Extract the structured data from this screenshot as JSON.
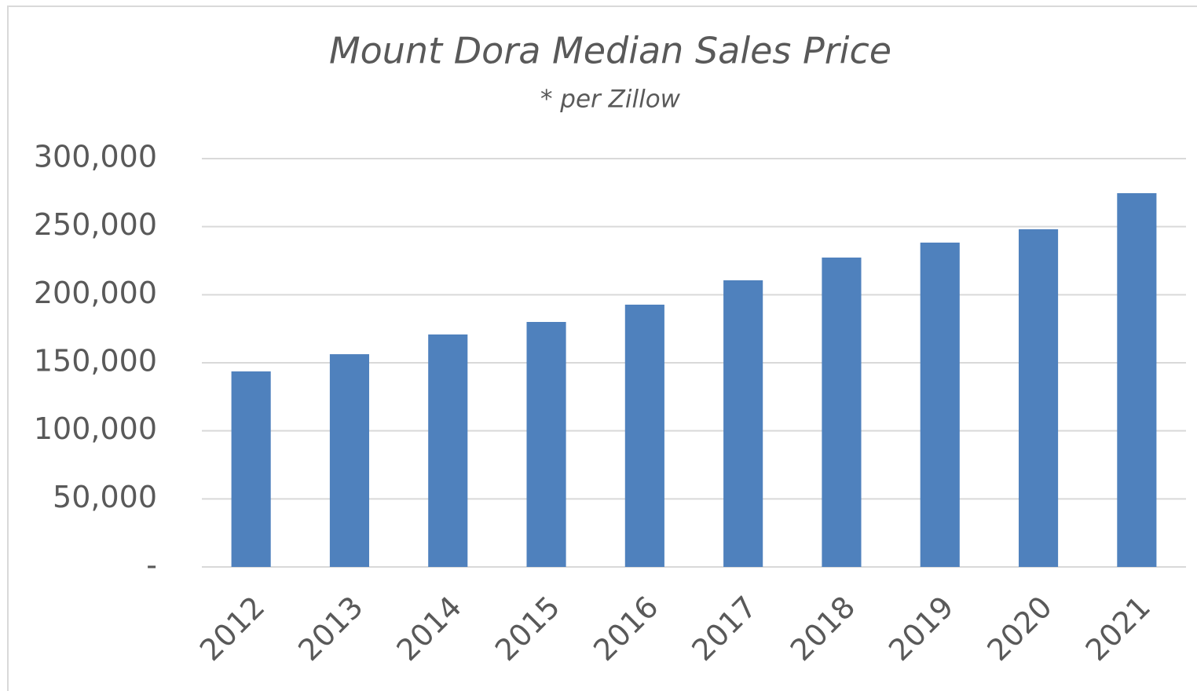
{
  "chart_data": {
    "type": "bar",
    "title": "Mount Dora Median Sales Price",
    "subtitle": "* per Zillow",
    "categories": [
      "2012",
      "2013",
      "2014",
      "2015",
      "2016",
      "2017",
      "2018",
      "2019",
      "2020",
      "2021"
    ],
    "values": [
      143650,
      156300,
      170800,
      180000,
      192700,
      210600,
      227300,
      238300,
      248100,
      274600
    ],
    "color": "#4f81bd",
    "ylim": [
      0,
      300000
    ],
    "yticks": [
      {
        "value": 0,
        "label": "-"
      },
      {
        "value": 50000,
        "label": "50,000"
      },
      {
        "value": 100000,
        "label": "100,000"
      },
      {
        "value": 150000,
        "label": "150,000"
      },
      {
        "value": 200000,
        "label": "200,000"
      },
      {
        "value": 250000,
        "label": "250,000"
      },
      {
        "value": 300000,
        "label": "300,000"
      }
    ],
    "grid": true
  }
}
